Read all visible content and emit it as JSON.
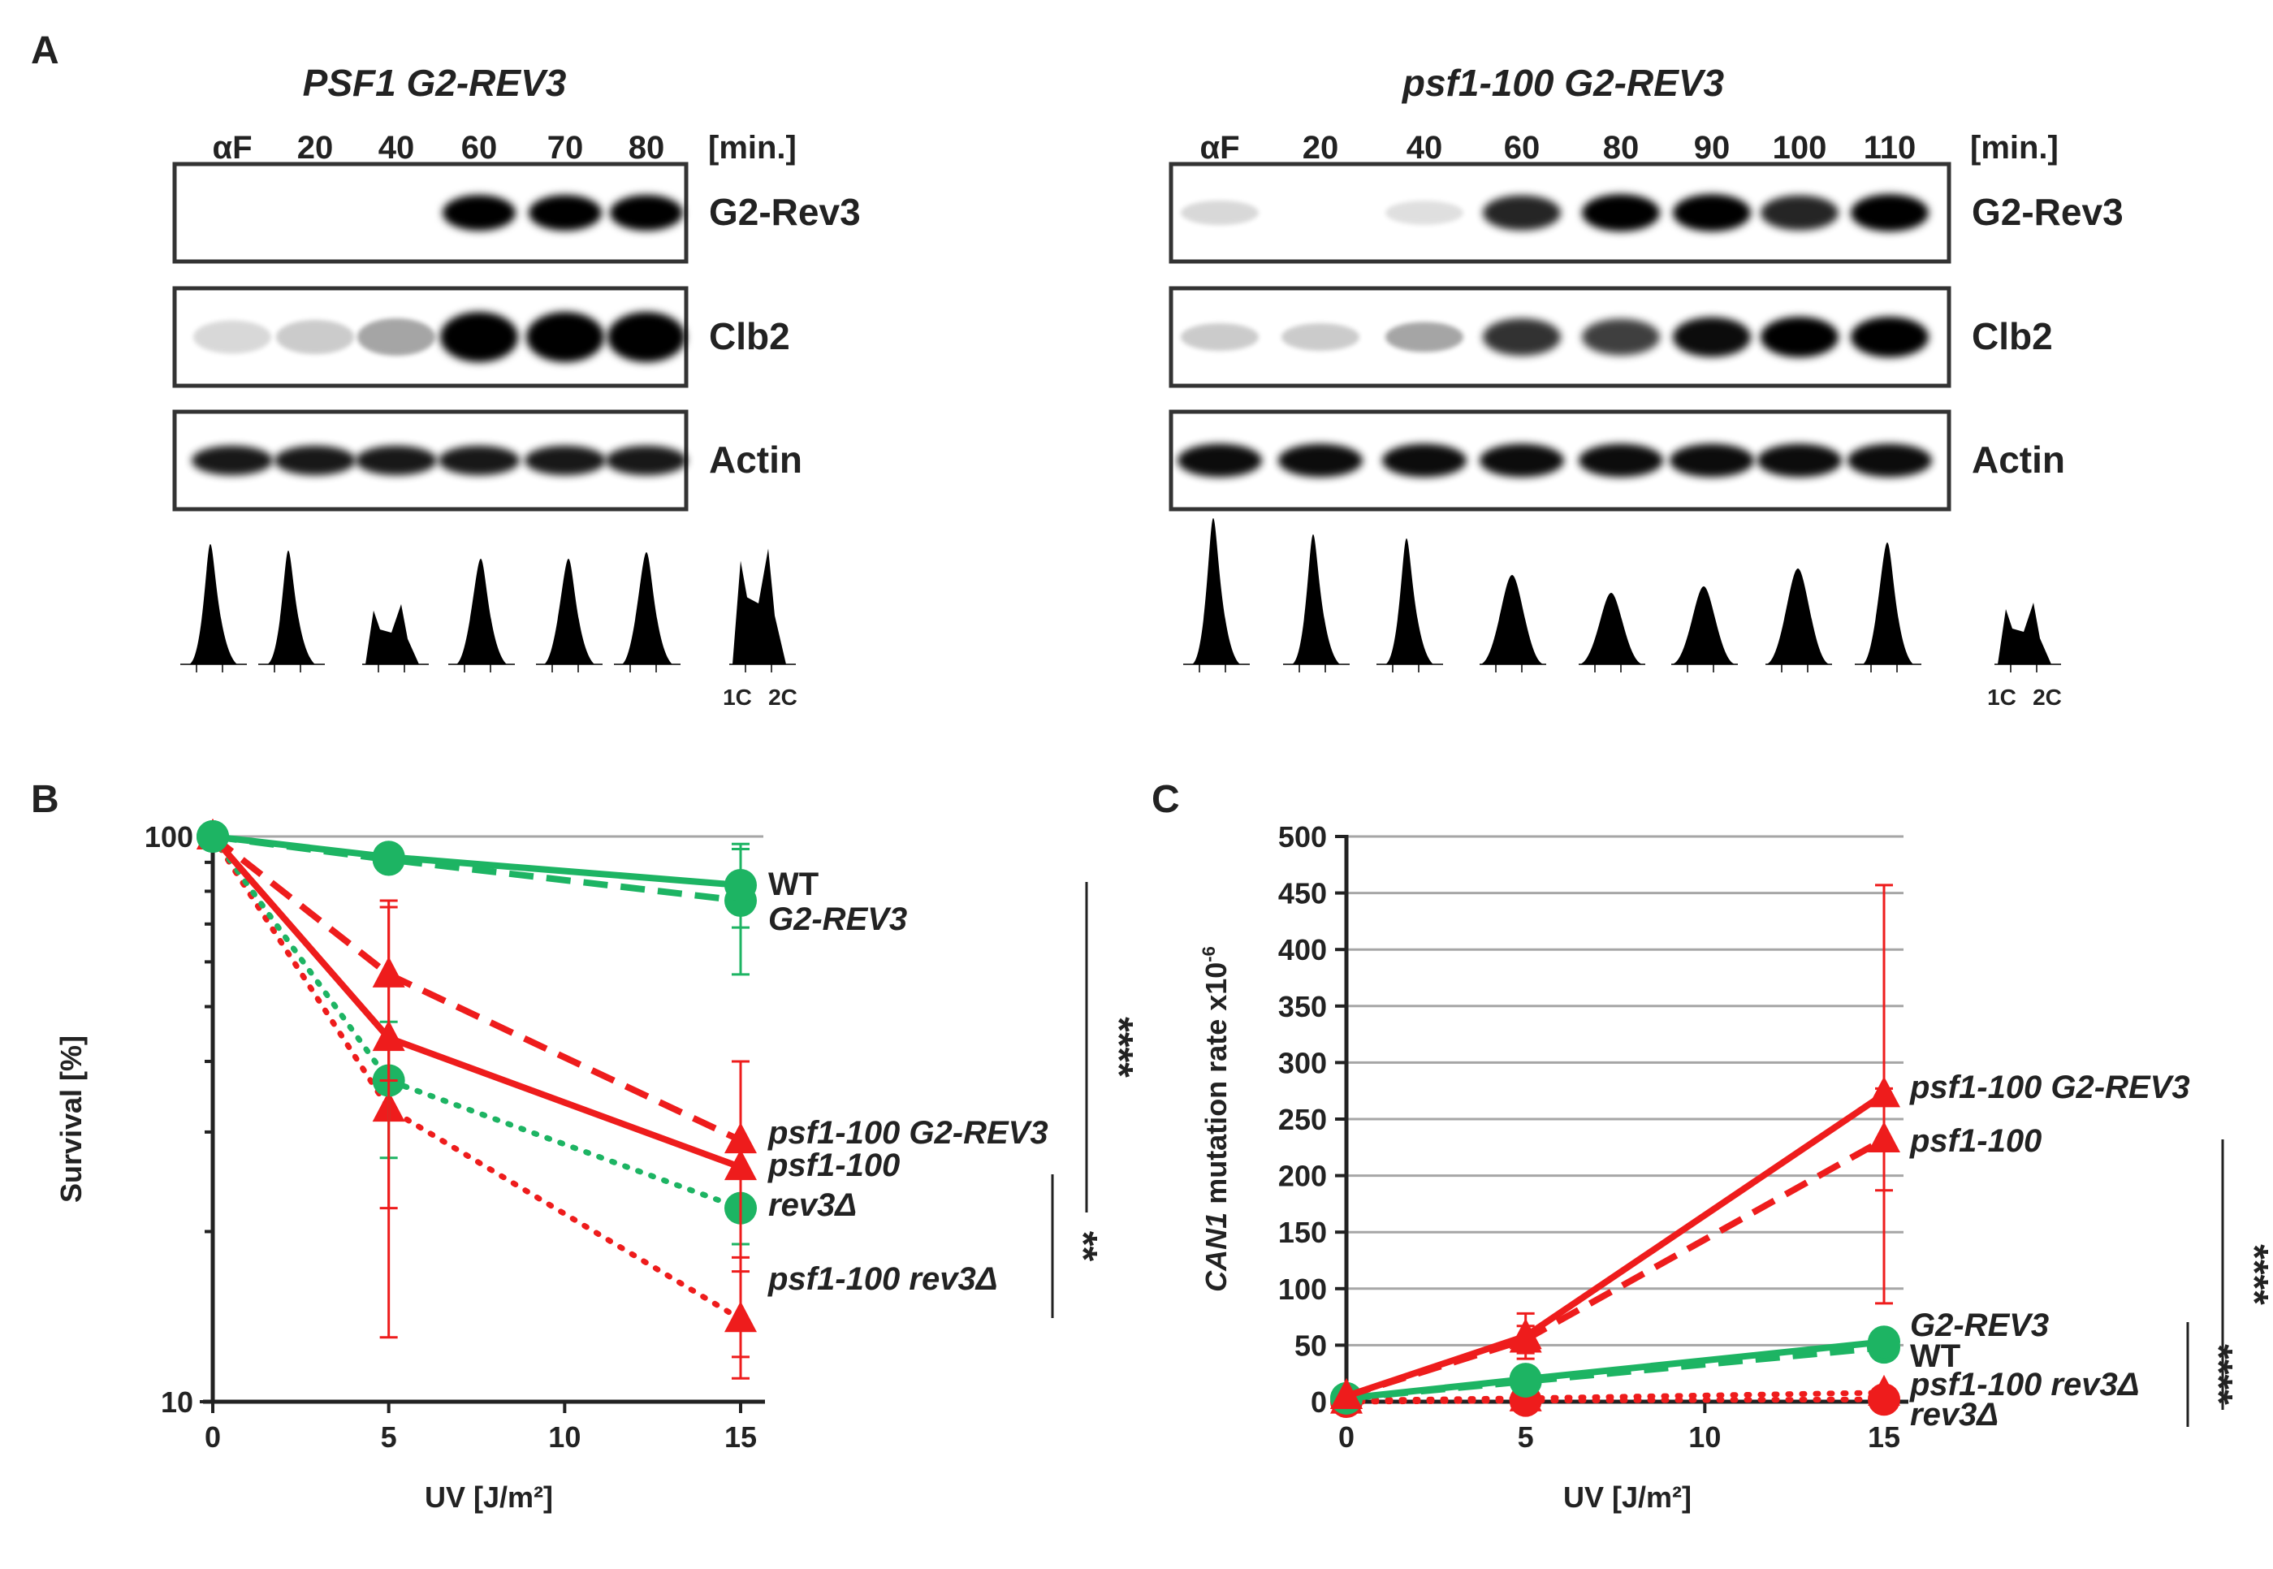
{
  "panel_a": {
    "letter": "A",
    "left": {
      "title": "PSF1 G2-REV3",
      "lanes": [
        "αF",
        "20",
        "40",
        "60",
        "70",
        "80"
      ],
      "unit": "[min.]",
      "blots": [
        "G2-Rev3",
        "Clb2",
        "Actin"
      ],
      "dna_labels": [
        "1C",
        "2C"
      ]
    },
    "right": {
      "title": "psf1-100 G2-REV3",
      "lanes": [
        "αF",
        "20",
        "40",
        "60",
        "80",
        "90",
        "100",
        "110"
      ],
      "unit": "[min.]",
      "blots": [
        "G2-Rev3",
        "Clb2",
        "Actin"
      ],
      "dna_labels": [
        "1C",
        "2C"
      ]
    }
  },
  "panel_b_letter": "B",
  "panel_c_letter": "C",
  "colors": {
    "green": "#1db463",
    "red": "#ee1c1c",
    "axis": "#222222",
    "grid": "#a6a6a6"
  },
  "chart_data": [
    {
      "id": "B",
      "type": "line",
      "title": "",
      "xlabel": "UV [J/m²]",
      "ylabel": "Survival [%]",
      "y_scale": "log",
      "ylim": [
        10,
        100
      ],
      "xlim": [
        0,
        15
      ],
      "x_ticks": [
        "0",
        "5",
        "10",
        "15"
      ],
      "y_ticks": [
        "10",
        "100"
      ],
      "x": [
        0,
        5,
        15
      ],
      "series": [
        {
          "name": "WT",
          "label": "WT",
          "color": "green",
          "style": "solid",
          "marker": "circle",
          "values": [
            100,
            92,
            82
          ],
          "err": [
            0,
            4,
            13
          ]
        },
        {
          "name": "G2-REV3",
          "label": "G2-REV3",
          "color": "green",
          "style": "dashed",
          "marker": "circle",
          "values": [
            100,
            91,
            77
          ],
          "err": [
            0,
            3,
            20
          ]
        },
        {
          "name": "psf1-100 G2-REV3",
          "label": "psf1-100 G2-REV3",
          "color": "red",
          "style": "dashed",
          "marker": "triangle",
          "values": [
            100,
            57,
            29
          ],
          "err": [
            0,
            20,
            11
          ]
        },
        {
          "name": "psf1-100",
          "label": "psf1-100",
          "color": "red",
          "style": "solid",
          "marker": "triangle",
          "values": [
            100,
            44,
            26
          ],
          "err": [
            0,
            31,
            14
          ]
        },
        {
          "name": "rev3Δ",
          "label": "rev3Δ",
          "color": "green",
          "style": "dotted",
          "marker": "circle",
          "values": [
            100,
            37,
            22
          ],
          "err": [
            0,
            10,
            3
          ]
        },
        {
          "name": "psf1-100 rev3Δ",
          "label": "psf1-100 rev3Δ",
          "color": "red",
          "style": "dotted",
          "marker": "triangle",
          "values": [
            100,
            33,
            14
          ],
          "err": [
            0,
            11,
            3
          ]
        }
      ],
      "significance": [
        "****",
        "**"
      ]
    },
    {
      "id": "C",
      "type": "line",
      "title": "",
      "xlabel": "UV [J/m²]",
      "ylabel_italic": "CAN1",
      "ylabel_rest": " mutation rate x10",
      "ylabel_exp": "-6",
      "ylim": [
        0,
        500
      ],
      "xlim": [
        0,
        15
      ],
      "x_ticks": [
        "0",
        "5",
        "10",
        "15"
      ],
      "y_ticks": [
        "0",
        "50",
        "100",
        "150",
        "200",
        "250",
        "300",
        "350",
        "400",
        "450",
        "500"
      ],
      "x": [
        0,
        5,
        15
      ],
      "series": [
        {
          "name": "psf1-100 G2-REV3",
          "label": "psf1-100 G2-REV3",
          "color": "red",
          "style": "solid",
          "marker": "triangle",
          "values": [
            5,
            58,
            272
          ],
          "err": [
            0,
            20,
            185
          ]
        },
        {
          "name": "psf1-100",
          "label": "psf1-100",
          "color": "red",
          "style": "dashed",
          "marker": "triangle",
          "values": [
            5,
            55,
            232
          ],
          "err": [
            0,
            12,
            45
          ]
        },
        {
          "name": "G2-REV3",
          "label": "G2-REV3",
          "color": "green",
          "style": "solid",
          "marker": "circle",
          "values": [
            3,
            20,
            53
          ],
          "err": [
            0,
            3,
            8
          ]
        },
        {
          "name": "WT",
          "label": "WT",
          "color": "green",
          "style": "dashed",
          "marker": "circle",
          "values": [
            3,
            18,
            48
          ],
          "err": [
            0,
            3,
            5
          ]
        },
        {
          "name": "psf1-100 rev3Δ",
          "label": "psf1-100 rev3Δ",
          "color": "red",
          "style": "dotted",
          "marker": "triangle",
          "values": [
            1,
            3,
            8
          ],
          "err": [
            0,
            1,
            2
          ]
        },
        {
          "name": "rev3Δ",
          "label": "rev3Δ",
          "color": "red",
          "style": "dotted",
          "marker": "circle",
          "values": [
            0,
            1,
            2
          ],
          "err": [
            0,
            1,
            1
          ]
        }
      ],
      "significance": [
        "****",
        "****"
      ]
    }
  ]
}
